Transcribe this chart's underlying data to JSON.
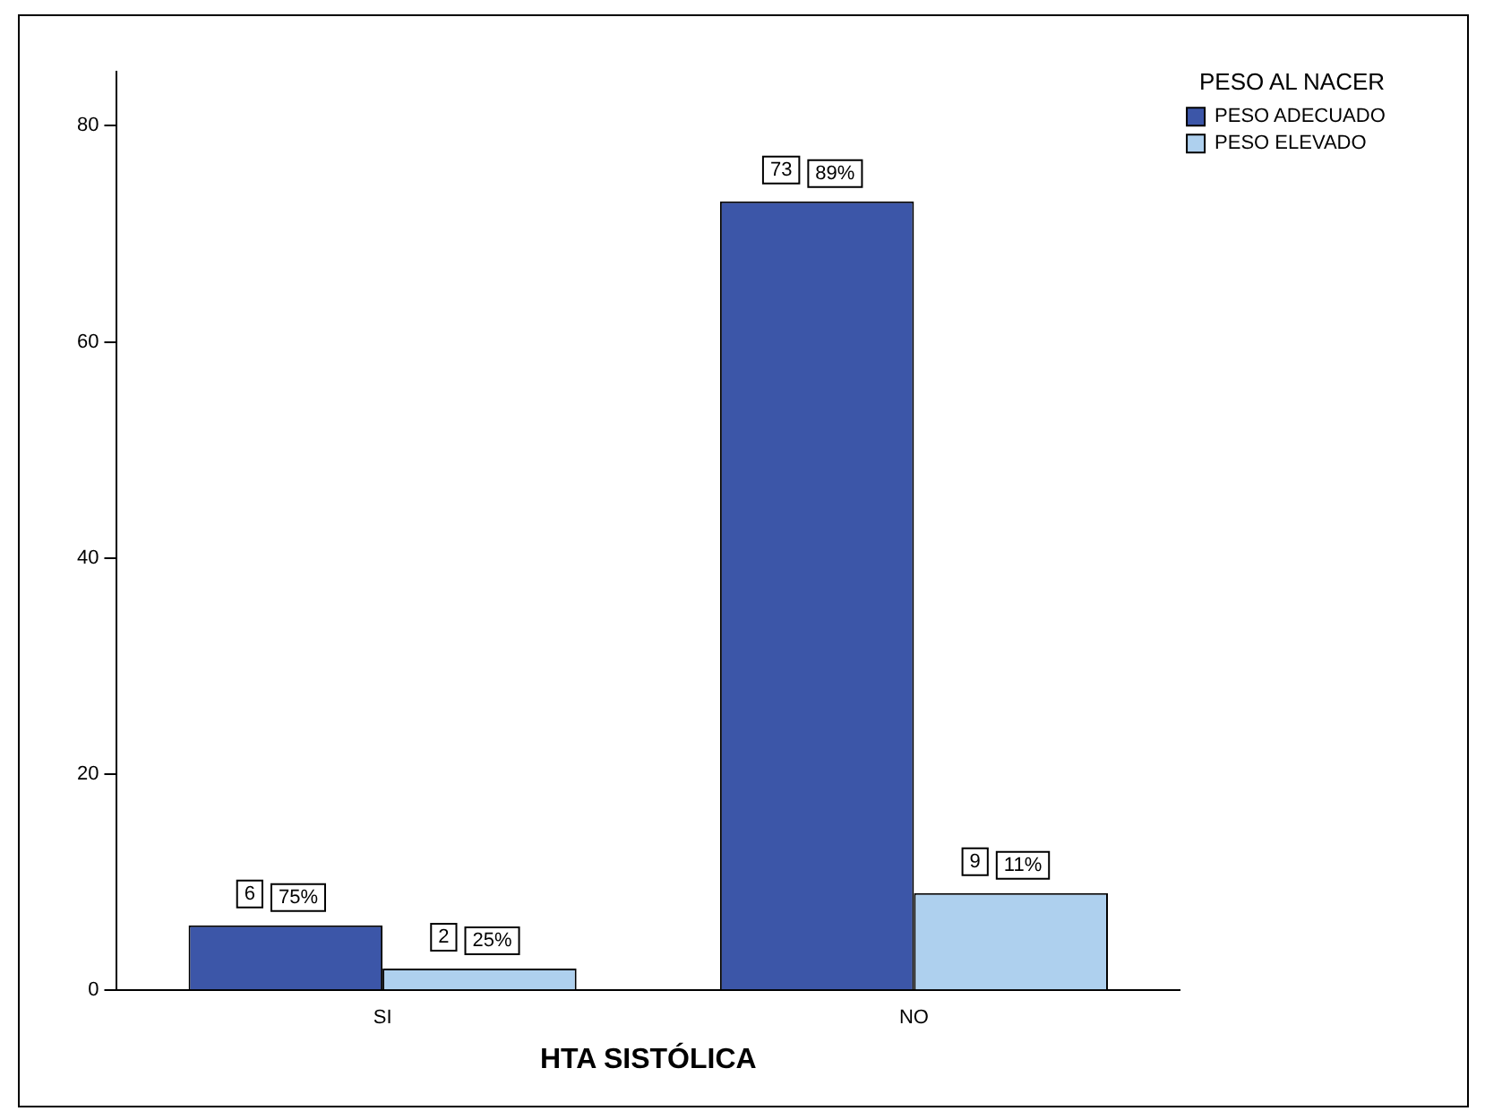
{
  "chart_data": {
    "type": "bar",
    "xlabel": "HTA SISTÓLICA",
    "legend_title": "PESO AL NACER",
    "categories": [
      "SI",
      "NO"
    ],
    "series": [
      {
        "name": "PESO ADECUADO",
        "color": "#3c56a8",
        "values": [
          6,
          73
        ]
      },
      {
        "name": "PESO ELEVADO",
        "color": "#aed0ee",
        "values": [
          2,
          9
        ]
      }
    ],
    "ylim": [
      0,
      85
    ],
    "yticks": [
      0,
      20,
      40,
      60,
      80
    ],
    "grid": false,
    "legend": "top right",
    "data_labels": true,
    "annotations": [
      "75%",
      "89%",
      "25%",
      "11%"
    ]
  }
}
